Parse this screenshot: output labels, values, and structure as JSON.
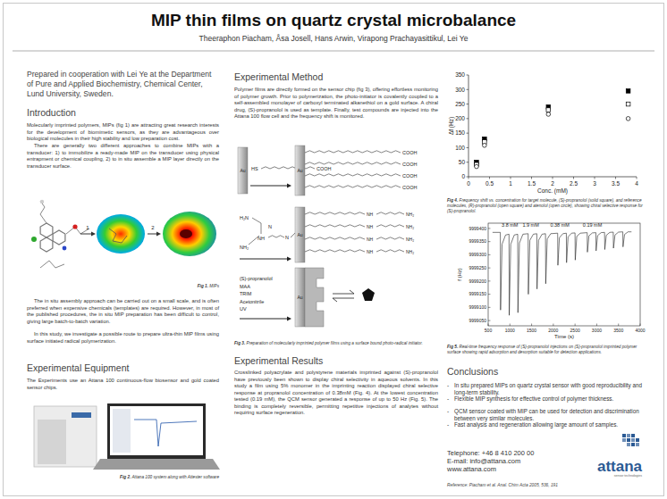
{
  "header": {
    "title": "MIP thin films on quartz crystal microbalance",
    "authors": "Theeraphon Piacham, Åsa Josell, Hans Arwin, Virapong Prachayasittikul, Lei Ye"
  },
  "left": {
    "affiliation": "Prepared in cooperation with Lei Ye at the Department of Pure and Applied Biochemistry, Chemical Center, Lund University, Sweden.",
    "intro_heading": "Introduction",
    "intro_paragraphs": [
      "Molecularly imprinted polymers, MIPs (fig 1) are attracting great research interests for the development of biomimetic sensors, as they are advantageous over biological molecules in their high stability and low preparation cost.",
      "There are generally two different approaches to combine MIPs with a transducer: 1) to immobilize a ready-made MIP on the transducer using physical entrapment or chemical coupling, 2) to in situ assemble a MIP layer directly on the transducer surface."
    ],
    "fig1_steps": [
      "1",
      "2"
    ],
    "fig1_caption": {
      "label": "Fig 1.",
      "text": "MIPs"
    },
    "assembly_paragraphs": [
      "The in situ assembly approach can be carried out on a small scale, and is often preferred when expensive chemicals (templates) are required. However, in most of the published procedures, the in situ MIP preparation has been difficult to control, giving large batch-to-batch variation.",
      "In this study, we investigate a possible route to prepare ultra-thin MIP films using surface initiated radical polymerization."
    ],
    "equipment_heading": "Experimental Equipment",
    "equipment_text": "The Experiments use an Attana 100 continuous-flow biosensor and gold coated sensor chips.",
    "fig2_caption": {
      "label": "Fig 2.",
      "text": "Attana 100 system along with Attester software"
    }
  },
  "middle": {
    "method_heading": "Experimental Method",
    "method_text": "Polymer films are directly formed on the sensor chip (fig 3), offering effortless monitoring of polymer growth. Prior to polymerization, the photo-initiator is covalently coupled to a self-assembled monolayer of carboxyl terminated alkanethiol on a gold surface. A chiral drug, (S)-propranolol is used as template. Finally, test compounds are injected into the Attana 100 flow cell and the frequency shift is monitored.",
    "diagram": {
      "au": "Au",
      "thiol_end": "HS",
      "cooh": "COOH",
      "initiator": [
        "H₂N",
        "NH",
        "N",
        "N",
        "NH₂"
      ],
      "reagents": [
        "(S)-propranolol",
        "MAA",
        "TRIM",
        "Acetonitrile",
        "UV"
      ]
    },
    "fig3_caption": {
      "label": "Fig 3.",
      "text": "Preparation of molecularly imprinted polymer films using a surface bound photo-radical initiator."
    },
    "results_heading": "Experimental Results",
    "results_text": "Crosslinked polyacrylate and polystyrene materials imprinted against (S)-propranolol have previously been shown to display chiral selectivity in aqueous solvents. In this study a film using 5% monomer in the imprinting reaction displayed chiral selective response at propranolol concentration of 0.38mM (Fig. 4). At the lowest concentration tested (0.19 mM), the QCM sensor generated a response of up to 50 Hz (Fig. 5). The binding is completely reversible, permitting repetitive injections of analytes without requiring surface regeneration."
  },
  "right": {
    "fig4_caption": {
      "label": "Fig 4.",
      "text": "Frequency shift vs. concentration for target molecule, (S)-propranolol (solid square), and reference molecules, (R)-propranolol (open square) and atenolol (open circle), showing chiral selective response for (S)-propranolol."
    },
    "fig5_caption": {
      "label": "Fig 5.",
      "text": "Real-time frequency response of (S)-propranolol injections on (S)-propranolol imprinted polymer surface showing rapid adsorption and desorption suitable for detection applications."
    },
    "conclusions_heading": "Conclusions",
    "bullet": "-",
    "conclusions": [
      "In situ prepared MIPs on quartz crystal sensor with good reproducibility and long-term stability.",
      "Flexible MIP synthesis for effective control of polymer thickness.",
      "QCM sensor coated with MIP can be used for detection and discrimination between very similar molecules.",
      "Fast analysis and regeneration allowing large amount of samples."
    ],
    "contact": [
      "Telephone: +46 8 410 200 00",
      "E-mail: info@attana.com",
      "www.attana.com"
    ],
    "logo": "attana",
    "logo_tagline": "sensor technologies",
    "reference": "Reference: Piacham et al. Anal. Chim Acta 2005, 536, 191"
  },
  "chart_data": [
    {
      "type": "scatter",
      "x_label": "Conc. (mM)",
      "y_label": "Δf (Hz)",
      "xlim": [
        0,
        4
      ],
      "ylim": [
        0,
        350
      ],
      "xticks": [
        0,
        0.5,
        1,
        1.5,
        2,
        2.5,
        3,
        3.5,
        4
      ],
      "yticks": [
        0,
        50,
        100,
        150,
        200,
        250,
        300,
        350
      ],
      "grid": false,
      "x": [
        0.19,
        0.38,
        1.9,
        3.8
      ],
      "series": [
        {
          "marker": "square",
          "color": "#000000",
          "values": [
            50,
            130,
            240,
            295
          ]
        },
        {
          "marker": "square-open",
          "color": "#000000",
          "values": [
            42,
            120,
            230,
            250
          ]
        },
        {
          "marker": "circle-open",
          "color": "#000000",
          "values": [
            35,
            108,
            215,
            200
          ]
        }
      ]
    },
    {
      "type": "line",
      "x_label": "Time (s)",
      "y_label": "f (Hz)",
      "xlim": [
        500,
        4000
      ],
      "ylim": [
        9999030,
        9999420
      ],
      "xticks": [
        500,
        1000,
        1500,
        2000,
        2500,
        3000,
        3500,
        4000
      ],
      "yticks": [
        9999050,
        9999100,
        9999150,
        9999200,
        9999250,
        9999300,
        9999350,
        9999400
      ],
      "grid": false,
      "annotations": [
        {
          "text": "3.8 mM",
          "x": 1000,
          "y": 9999405
        },
        {
          "text": "1.9 mM",
          "x": 1480,
          "y": 9999405
        },
        {
          "text": "0.38 mM",
          "x": 2150,
          "y": 9999405
        },
        {
          "text": "0.19 mM",
          "x": 2900,
          "y": 9999405
        }
      ],
      "x": [
        600,
        780,
        785,
        820,
        900,
        980,
        985,
        1020,
        1100,
        1180,
        1185,
        1220,
        1300,
        1420,
        1425,
        1460,
        1540,
        1620,
        1625,
        1660,
        1740,
        1820,
        1825,
        1860,
        1940,
        2100,
        2105,
        2140,
        2220,
        2300,
        2305,
        2340,
        2420,
        2500,
        2505,
        2540,
        2620,
        2780,
        2785,
        2820,
        2900,
        2980,
        2985,
        3020,
        3100,
        3180,
        3185,
        3220,
        3300,
        3380,
        3385,
        3420,
        3500,
        3600,
        3605,
        3640,
        3720,
        3800
      ],
      "series": [
        {
          "color": "#222222",
          "line_style": "solid",
          "values": [
            9999385,
            9999385,
            9999090,
            9999340,
            9999375,
            9999378,
            9999070,
            9999340,
            9999375,
            9999378,
            9999080,
            9999345,
            9999378,
            9999380,
            9999150,
            9999355,
            9999378,
            9999380,
            9999170,
            9999355,
            9999378,
            9999380,
            9999190,
            9999360,
            9999380,
            9999382,
            9999260,
            9999365,
            9999380,
            9999382,
            9999270,
            9999368,
            9999382,
            9999383,
            9999280,
            9999370,
            9999382,
            9999384,
            9999310,
            9999372,
            9999383,
            9999384,
            9999315,
            9999373,
            9999384,
            9999385,
            9999320,
            9999374,
            9999385,
            9999386,
            9999325,
            9999375,
            9999386,
            9999387,
            9999330,
            9999377,
            9999387,
            9999387
          ]
        }
      ]
    }
  ]
}
